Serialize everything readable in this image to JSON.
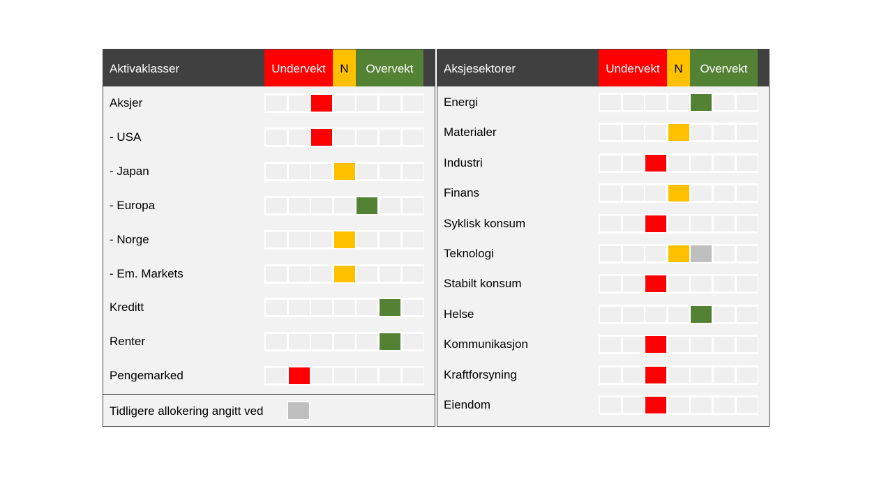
{
  "colors": {
    "under": "#ff0000",
    "neutral": "#ffc000",
    "over": "#548235",
    "previous": "#bfbfbf"
  },
  "scale_labels": {
    "under": "Undervekt",
    "neutral": "N",
    "over": "Overvekt"
  },
  "scale_positions": 7,
  "panels": [
    {
      "title": "Aktivaklasser",
      "rows": [
        {
          "label": "Aksjer",
          "position": 3,
          "color": "under"
        },
        {
          "label": "- USA",
          "position": 3,
          "color": "under"
        },
        {
          "label": "- Japan",
          "position": 4,
          "color": "neutral"
        },
        {
          "label": "- Europa",
          "position": 5,
          "color": "over"
        },
        {
          "label": "- Norge",
          "position": 4,
          "color": "neutral"
        },
        {
          "label": "- Em. Markets",
          "position": 4,
          "color": "neutral"
        },
        {
          "label": "Kreditt",
          "position": 6,
          "color": "over"
        },
        {
          "label": "Renter",
          "position": 6,
          "color": "over"
        },
        {
          "label": "Pengemarked",
          "position": 2,
          "color": "under"
        }
      ],
      "legend": {
        "label": "Tidligere allokering angitt ved",
        "color": "previous"
      }
    },
    {
      "title": "Aksjesektorer",
      "rows": [
        {
          "label": "Energi",
          "position": 5,
          "color": "over"
        },
        {
          "label": "Materialer",
          "position": 4,
          "color": "neutral"
        },
        {
          "label": "Industri",
          "position": 3,
          "color": "under"
        },
        {
          "label": "Finans",
          "position": 4,
          "color": "neutral"
        },
        {
          "label": "Syklisk konsum",
          "position": 3,
          "color": "under"
        },
        {
          "label": "Teknologi",
          "position": 4,
          "color": "neutral",
          "previous_position": 5
        },
        {
          "label": "Stabilt konsum",
          "position": 3,
          "color": "under"
        },
        {
          "label": "Helse",
          "position": 5,
          "color": "over"
        },
        {
          "label": "Kommunikasjon",
          "position": 3,
          "color": "under"
        },
        {
          "label": "Kraftforsyning",
          "position": 3,
          "color": "under"
        },
        {
          "label": "Eiendom",
          "position": 3,
          "color": "under"
        }
      ]
    }
  ]
}
